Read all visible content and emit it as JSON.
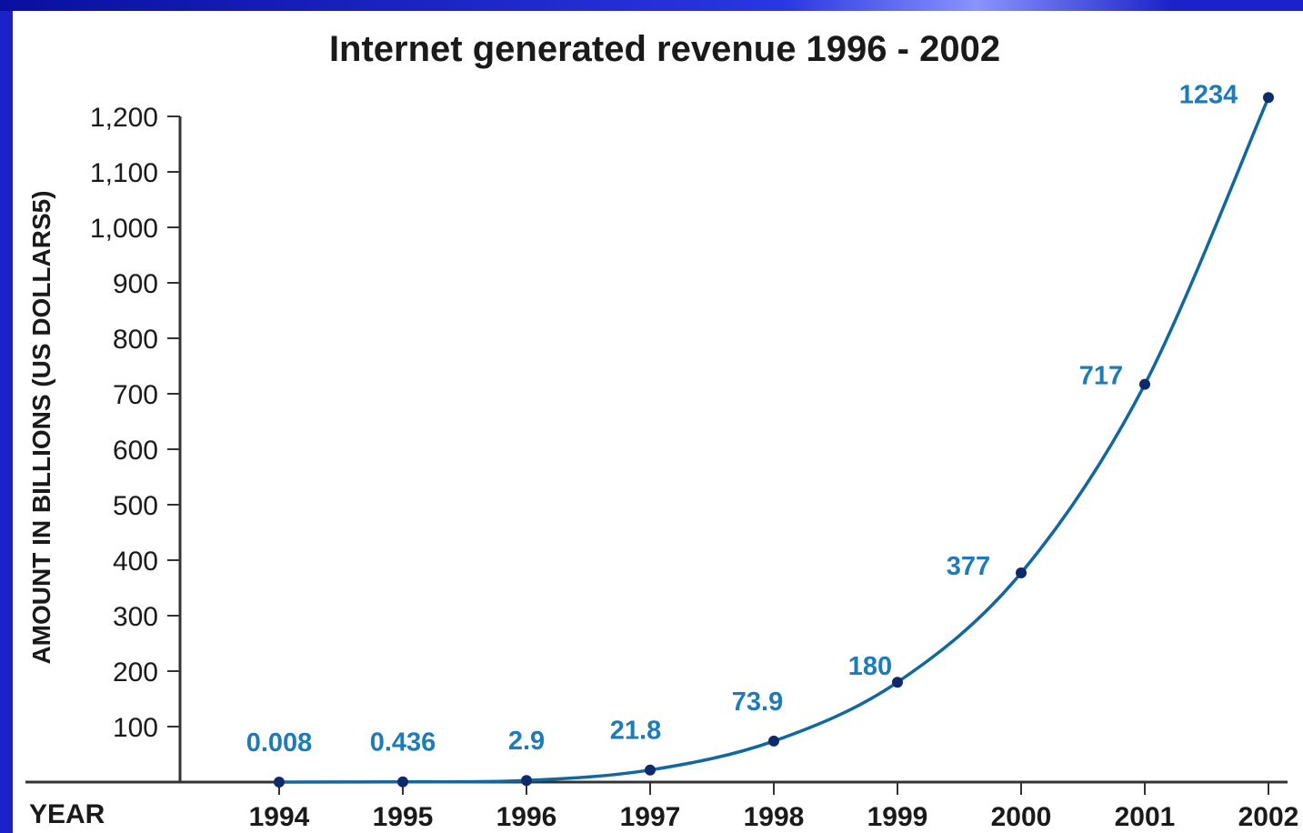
{
  "chart_data": {
    "type": "line",
    "title": "Internet generated revenue 1996 - 2002",
    "xlabel": "YEAR",
    "ylabel": "AMOUNT IN BILLIONS  (US DOLLARS5)",
    "categories": [
      "1994",
      "1995",
      "1996",
      "1997",
      "1998",
      "1999",
      "2000",
      "2001",
      "2002"
    ],
    "values": [
      0.008,
      0.436,
      2.9,
      21.8,
      73.9,
      180,
      377,
      717,
      1234
    ],
    "data_labels": [
      "0.008",
      "0.436",
      "2.9",
      "21.8",
      "73.9",
      "180",
      "377",
      "717",
      "1234"
    ],
    "yticks": [
      "100",
      "200",
      "300",
      "400",
      "500",
      "600",
      "700",
      "800",
      "900",
      "1,000",
      "1,100",
      "1,200"
    ],
    "ylim": [
      0,
      1200
    ],
    "grid": false,
    "colors": {
      "line": "#10689e",
      "marker": "#0d2a6b",
      "data_label": "#1d7bb8",
      "text": "#1a1a1a",
      "frame": "#1a22c8"
    }
  }
}
